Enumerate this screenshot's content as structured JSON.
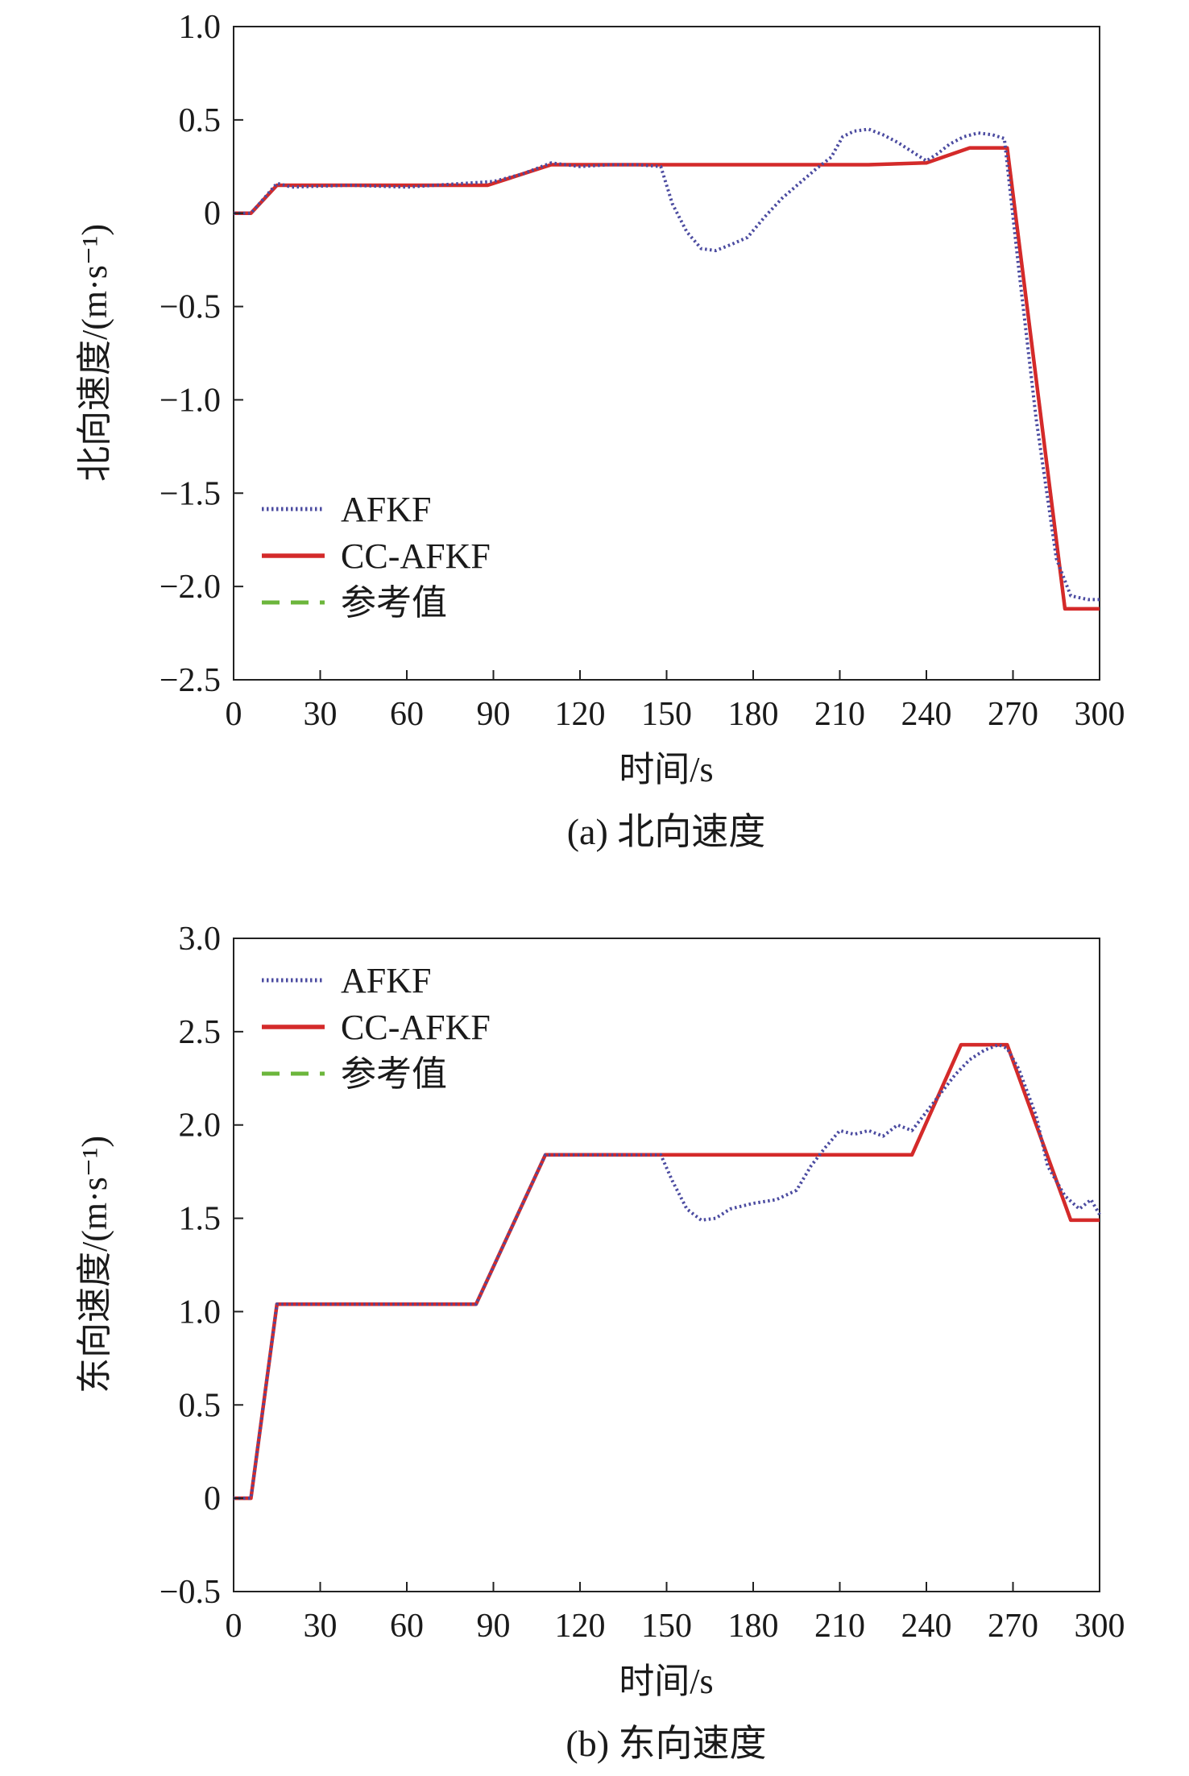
{
  "chart_data": [
    {
      "type": "line",
      "caption": "(a) 北向速度",
      "xlabel": "时间/s",
      "ylabel": "北向速度/(m·s⁻¹)",
      "xlim": [
        0,
        300
      ],
      "ylim": [
        -2.5,
        1.0
      ],
      "xticks": [
        0,
        30,
        60,
        90,
        120,
        150,
        180,
        210,
        240,
        270,
        300
      ],
      "yticks": [
        1.0,
        0.5,
        0,
        -0.5,
        -1.0,
        -1.5,
        -2.0,
        -2.5
      ],
      "ytick_labels": [
        "1.0",
        "0.5",
        "0",
        "−0.5",
        "−1.0",
        "−1.5",
        "−2.0",
        "−2.5"
      ],
      "grid": false,
      "legend": "lower-left",
      "series": [
        {
          "name": "AFKF",
          "color": "#4b4ba0",
          "style": "dotted",
          "x": [
            0,
            6,
            10,
            15,
            20,
            40,
            60,
            80,
            90,
            100,
            110,
            120,
            130,
            140,
            148,
            152,
            157,
            162,
            167,
            172,
            178,
            184,
            190,
            196,
            202,
            207,
            211,
            215,
            220,
            225,
            230,
            235,
            240,
            244,
            248,
            253,
            258,
            263,
            267,
            272,
            278,
            285,
            290,
            296,
            300
          ],
          "y": [
            0,
            0,
            0.07,
            0.16,
            0.14,
            0.15,
            0.14,
            0.16,
            0.17,
            0.21,
            0.27,
            0.25,
            0.26,
            0.26,
            0.25,
            0.05,
            -0.1,
            -0.19,
            -0.2,
            -0.17,
            -0.13,
            -0.02,
            0.08,
            0.16,
            0.24,
            0.3,
            0.41,
            0.44,
            0.45,
            0.42,
            0.38,
            0.33,
            0.28,
            0.32,
            0.37,
            0.41,
            0.43,
            0.42,
            0.4,
            -0.3,
            -1.1,
            -1.85,
            -2.05,
            -2.07,
            -2.07
          ]
        },
        {
          "name": "CC-AFKF",
          "color": "#d42a2a",
          "style": "solid",
          "x": [
            0,
            6,
            15,
            40,
            60,
            88,
            110,
            150,
            200,
            220,
            240,
            255,
            268,
            288,
            300
          ],
          "y": [
            0,
            0,
            0.15,
            0.15,
            0.15,
            0.15,
            0.26,
            0.26,
            0.26,
            0.26,
            0.27,
            0.35,
            0.35,
            -2.12,
            -2.12
          ]
        },
        {
          "name": "参考值",
          "color": "#6cb63c",
          "style": "dashed",
          "x": [
            0,
            6,
            15,
            40,
            60,
            88,
            110,
            150,
            200,
            220,
            240,
            255,
            268,
            288,
            300
          ],
          "y": [
            0,
            0,
            0.15,
            0.15,
            0.15,
            0.15,
            0.26,
            0.26,
            0.26,
            0.26,
            0.27,
            0.35,
            0.35,
            -2.12,
            -2.12
          ]
        }
      ]
    },
    {
      "type": "line",
      "caption": "(b) 东向速度",
      "xlabel": "时间/s",
      "ylabel": "东向速度/(m·s⁻¹)",
      "xlim": [
        0,
        300
      ],
      "ylim": [
        -0.5,
        3.0
      ],
      "xticks": [
        0,
        30,
        60,
        90,
        120,
        150,
        180,
        210,
        240,
        270,
        300
      ],
      "yticks": [
        3.0,
        2.5,
        2.0,
        1.5,
        1.0,
        0.5,
        0,
        -0.5
      ],
      "ytick_labels": [
        "3.0",
        "2.5",
        "2.0",
        "1.5",
        "1.0",
        "0.5",
        "0",
        "−0.5"
      ],
      "grid": false,
      "legend": "top-left",
      "series": [
        {
          "name": "AFKF",
          "color": "#4b4ba0",
          "style": "dotted",
          "x": [
            0,
            6,
            15,
            40,
            60,
            84,
            108,
            120,
            140,
            148,
            152,
            157,
            162,
            167,
            172,
            180,
            188,
            195,
            200,
            205,
            210,
            215,
            220,
            225,
            230,
            235,
            240,
            245,
            250,
            255,
            260,
            265,
            268,
            272,
            278,
            282,
            288,
            293,
            297,
            300
          ],
          "y": [
            0,
            0,
            1.04,
            1.04,
            1.04,
            1.04,
            1.84,
            1.84,
            1.84,
            1.84,
            1.7,
            1.55,
            1.49,
            1.5,
            1.55,
            1.58,
            1.6,
            1.65,
            1.78,
            1.88,
            1.97,
            1.95,
            1.97,
            1.94,
            2.0,
            1.97,
            2.07,
            2.17,
            2.27,
            2.35,
            2.4,
            2.43,
            2.41,
            2.3,
            2.05,
            1.78,
            1.62,
            1.55,
            1.6,
            1.52
          ]
        },
        {
          "name": "CC-AFKF",
          "color": "#d42a2a",
          "style": "solid",
          "x": [
            0,
            6,
            15,
            40,
            60,
            84,
            108,
            150,
            200,
            235,
            252,
            268,
            290,
            300
          ],
          "y": [
            0,
            0,
            1.04,
            1.04,
            1.04,
            1.04,
            1.84,
            1.84,
            1.84,
            1.84,
            2.43,
            2.43,
            1.49,
            1.49
          ]
        },
        {
          "name": "参考值",
          "color": "#6cb63c",
          "style": "dashed",
          "x": [
            0,
            6,
            15,
            40,
            60,
            84,
            108,
            150,
            200,
            235,
            252,
            268,
            290,
            300
          ],
          "y": [
            0,
            0,
            1.04,
            1.04,
            1.04,
            1.04,
            1.84,
            1.84,
            1.84,
            1.84,
            2.43,
            2.43,
            1.49,
            1.49
          ]
        }
      ]
    }
  ]
}
